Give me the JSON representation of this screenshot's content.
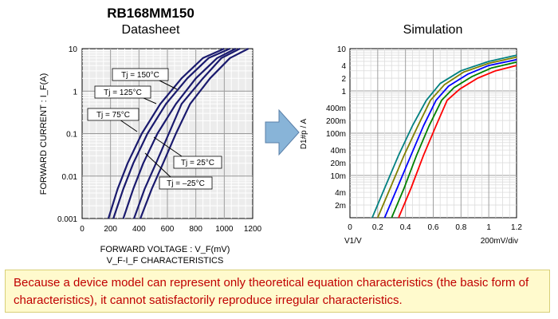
{
  "chart_data": [
    {
      "type": "line",
      "title": "RB168MM150",
      "subtitle": "Datasheet",
      "xlabel": "FORWARD VOLTAGE : V_F(mV)",
      "ylabel": "FORWARD CURRENT : I_F(A)",
      "caption": "V_F-I_F CHARACTERISTICS",
      "x_scale": "linear",
      "y_scale": "log",
      "xlim": [
        0,
        1200
      ],
      "ylim": [
        0.001,
        10
      ],
      "grid": true,
      "x_ticks": [
        "0",
        "200",
        "400",
        "600",
        "800",
        "1000",
        "1200"
      ],
      "y_ticks": [
        "0.001",
        "0.01",
        "0.1",
        "1",
        "10"
      ],
      "series": [
        {
          "name": "Tj = 150°C",
          "x": [
            185,
            250,
            320,
            420,
            550,
            700,
            850,
            1000
          ],
          "y": [
            0.001,
            0.005,
            0.02,
            0.1,
            0.5,
            2,
            6,
            10
          ]
        },
        {
          "name": "Tj = 125°C",
          "x": [
            220,
            290,
            360,
            460,
            590,
            740,
            890,
            1040
          ],
          "y": [
            0.001,
            0.005,
            0.02,
            0.1,
            0.5,
            2,
            6,
            10
          ]
        },
        {
          "name": "Tj = 75°C",
          "x": [
            290,
            360,
            430,
            530,
            660,
            800,
            950,
            1080
          ],
          "y": [
            0.001,
            0.005,
            0.02,
            0.1,
            0.5,
            2,
            6,
            10
          ]
        },
        {
          "name": "Tj = 25°C",
          "x": [
            365,
            440,
            520,
            610,
            700,
            850,
            980,
            1110
          ],
          "y": [
            0.001,
            0.005,
            0.02,
            0.1,
            0.5,
            2,
            6,
            10
          ]
        },
        {
          "name": "Tj = –25°C",
          "x": [
            410,
            490,
            570,
            660,
            760,
            900,
            1040,
            1170
          ],
          "y": [
            0.001,
            0.005,
            0.02,
            0.1,
            0.5,
            2,
            6,
            10
          ]
        }
      ],
      "annotations": [
        "Tj = 150°C",
        "Tj = 125°C",
        "Tj = 75°C",
        "Tj = 25°C",
        "Tj = –25°C"
      ]
    },
    {
      "type": "line",
      "title": "Simulation",
      "xlabel": "V1/V",
      "ylabel": "D1#p / A",
      "x_scale_text": "200mV/div",
      "x_scale": "linear",
      "y_scale": "log",
      "xlim": [
        0,
        1.2
      ],
      "ylim": [
        0.001,
        10
      ],
      "grid": true,
      "x_ticks": [
        "0",
        "0.2",
        "0.4",
        "0.6",
        "0.8",
        "1",
        "1.2"
      ],
      "y_ticks": [
        "10",
        "4",
        "2",
        "1",
        "400m",
        "200m",
        "100m",
        "40m",
        "20m",
        "10m",
        "4m",
        "2m"
      ],
      "series": [
        {
          "color": "#008080",
          "x": [
            0.16,
            0.25,
            0.35,
            0.45,
            0.55,
            0.65,
            0.8,
            1.0,
            1.2
          ],
          "y": [
            0.001,
            0.005,
            0.03,
            0.15,
            0.6,
            1.5,
            3,
            5,
            7
          ]
        },
        {
          "color": "#808000",
          "x": [
            0.2,
            0.29,
            0.39,
            0.49,
            0.58,
            0.68,
            0.82,
            1.0,
            1.2
          ],
          "y": [
            0.001,
            0.005,
            0.03,
            0.15,
            0.6,
            1.4,
            2.8,
            4.5,
            6.3
          ]
        },
        {
          "color": "#0000ff",
          "x": [
            0.25,
            0.34,
            0.44,
            0.53,
            0.62,
            0.71,
            0.85,
            1.0,
            1.2
          ],
          "y": [
            0.001,
            0.005,
            0.03,
            0.15,
            0.6,
            1.3,
            2.5,
            4,
            5.5
          ]
        },
        {
          "color": "#008000",
          "x": [
            0.3,
            0.39,
            0.48,
            0.57,
            0.66,
            0.75,
            0.88,
            1.02,
            1.2
          ],
          "y": [
            0.001,
            0.005,
            0.03,
            0.15,
            0.6,
            1.2,
            2.2,
            3.5,
            4.8
          ]
        },
        {
          "color": "#ff0000",
          "x": [
            0.35,
            0.44,
            0.53,
            0.62,
            0.7,
            0.79,
            0.92,
            1.05,
            1.2
          ],
          "y": [
            0.001,
            0.005,
            0.03,
            0.15,
            0.6,
            1.1,
            2,
            3,
            4
          ]
        }
      ]
    }
  ],
  "arrow_color": "#88b4d8",
  "note": "Because a device model can represent only theoretical equation characteristics (the basic form of characteristics), it cannot satisfactorily reproduce irregular characteristics."
}
